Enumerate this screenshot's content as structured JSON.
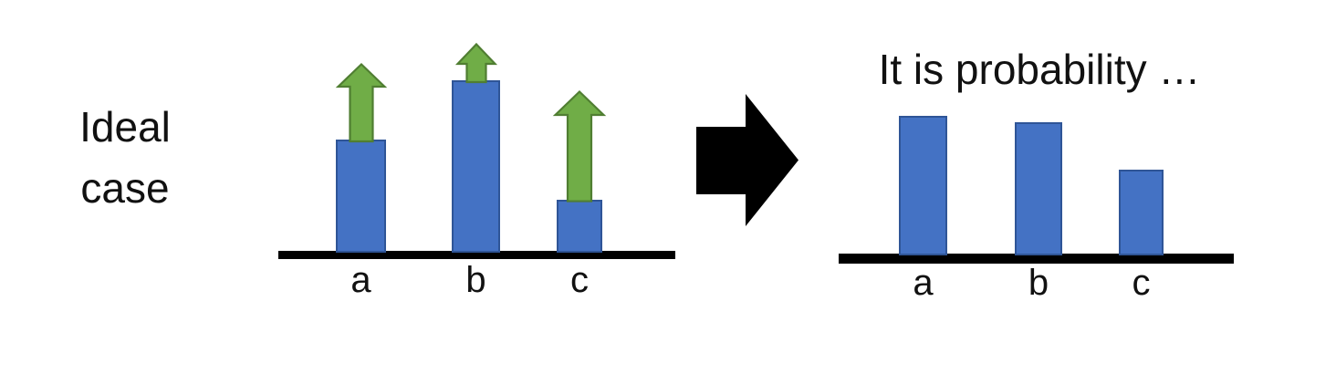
{
  "page": {
    "background": "#ffffff"
  },
  "ideal_label": {
    "line1": "Ideal",
    "line2": "case"
  },
  "colors": {
    "bar_fill": "#4472C4",
    "bar_border": "#2F5597",
    "arrow_fill": "#70AD47",
    "arrow_border": "#507E32",
    "axis": "#000000",
    "transform_arrow": "#000000",
    "text": "#111111"
  },
  "chart_data": [
    {
      "id": "ideal",
      "type": "bar",
      "side_label": "Ideal case",
      "categories": [
        "a",
        "b",
        "c"
      ],
      "values": [
        0.65,
        1.0,
        0.3
      ],
      "annotations": {
        "marker": "green-up-arrow",
        "lengths": [
          0.46,
          0.23,
          0.65
        ]
      },
      "axis_style": "thick black baseline, no ticks, no gridlines",
      "ylim": [
        0,
        1
      ],
      "legend": "none"
    },
    {
      "id": "probability",
      "type": "bar",
      "title": "It is probability …",
      "categories": [
        "a",
        "b",
        "c"
      ],
      "values": [
        0.81,
        0.77,
        0.49
      ],
      "axis_style": "thick black baseline, no ticks, no gridlines",
      "ylim": [
        0,
        1
      ],
      "legend": "none"
    }
  ]
}
